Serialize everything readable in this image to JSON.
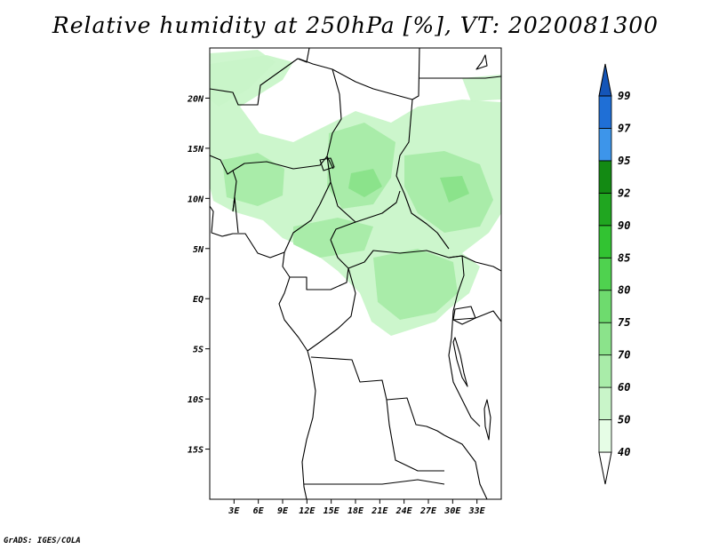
{
  "title": "Relative humidity at 250hPa [%], VT: 2020081300",
  "credit": "GrADS: IGES/COLA",
  "map": {
    "lon_ticks": [
      "3E",
      "6E",
      "9E",
      "12E",
      "15E",
      "18E",
      "21E",
      "24E",
      "27E",
      "30E",
      "33E"
    ],
    "lat_ticks": [
      "20N",
      "15N",
      "10N",
      "5N",
      "EQ",
      "5S",
      "10S",
      "15S"
    ]
  },
  "colorbar": {
    "levels": [
      "40",
      "50",
      "60",
      "70",
      "75",
      "80",
      "85",
      "90",
      "92",
      "95",
      "97",
      "99"
    ],
    "colors": [
      "#ffffff",
      "#e6fde6",
      "#c9f5c9",
      "#a9eca9",
      "#8be38b",
      "#6edb6e",
      "#4fd24f",
      "#32c332",
      "#20a620",
      "#138a13",
      "#3d95ea",
      "#1f6fd6",
      "#1455b8"
    ]
  }
}
